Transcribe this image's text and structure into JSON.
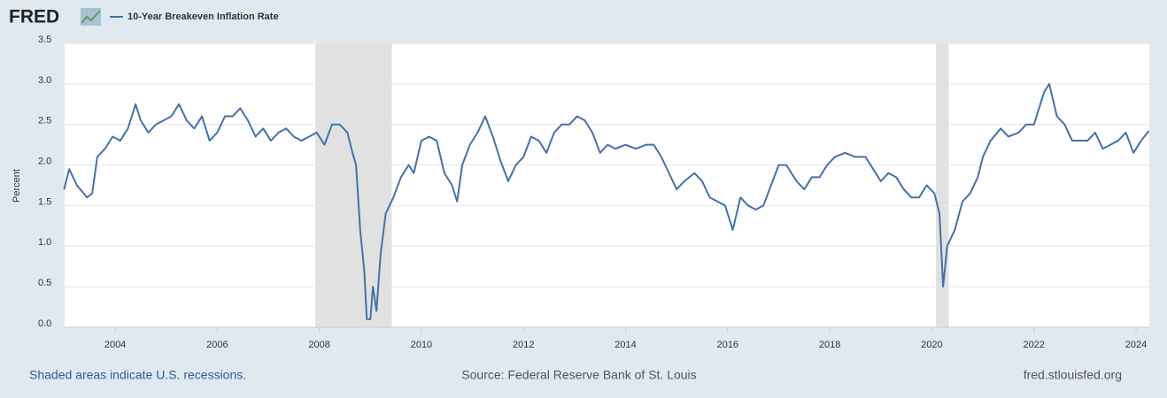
{
  "logo": "FRED",
  "chart_data": {
    "type": "line",
    "ylabel": "Percent",
    "series": [
      {
        "name": "10-Year Breakeven Inflation Rate",
        "color": "#4572a7",
        "values": [
          1.7,
          1.95,
          1.75,
          1.6,
          1.65,
          2.1,
          2.2,
          2.35,
          2.3,
          2.45,
          2.75,
          2.55,
          2.4,
          2.5,
          2.55,
          2.6,
          2.75,
          2.55,
          2.45,
          2.6,
          2.3,
          2.4,
          2.6,
          2.6,
          2.7,
          2.55,
          2.35,
          2.45,
          2.3,
          2.4,
          2.45,
          2.35,
          2.3,
          2.35,
          2.4,
          2.25,
          2.5,
          2.5,
          2.4,
          2.15,
          2.0,
          1.2,
          0.7,
          0.1,
          0.1,
          0.5,
          0.2,
          0.9,
          1.4,
          1.6,
          1.85,
          2.0,
          1.9,
          2.3,
          2.35,
          2.3,
          1.9,
          1.75,
          1.55,
          2.0,
          2.25,
          2.4,
          2.6,
          2.35,
          2.05,
          1.8,
          2.0,
          2.1,
          2.35,
          2.3,
          2.15,
          2.4,
          2.5,
          2.5,
          2.6,
          2.55,
          2.4,
          2.15,
          2.25,
          2.2,
          2.25,
          2.2,
          2.25,
          2.25,
          2.1,
          1.9,
          1.7,
          1.8,
          1.9,
          1.8,
          1.6,
          1.55,
          1.5,
          1.2,
          1.6,
          1.5,
          1.45,
          1.5,
          1.75,
          2.0,
          2.0,
          1.8,
          1.7,
          1.85,
          1.85,
          2.0,
          2.1,
          2.15,
          2.1,
          2.1,
          1.95,
          1.8,
          1.9,
          1.85,
          1.7,
          1.6,
          1.6,
          1.75,
          1.65,
          1.4,
          0.5,
          1.0,
          1.2,
          1.55,
          1.65,
          1.85,
          2.1,
          2.3,
          2.45,
          2.35,
          2.4,
          2.5,
          2.5,
          2.9,
          3.0,
          2.6,
          2.5,
          2.3,
          2.3,
          2.3,
          2.4,
          2.2,
          2.25,
          2.3,
          2.4,
          2.15,
          2.3,
          2.42
        ]
      }
    ],
    "x": [
      2003.0,
      2003.1,
      2003.25,
      2003.45,
      2003.55,
      2003.65,
      2003.8,
      2003.95,
      2004.1,
      2004.25,
      2004.4,
      2004.5,
      2004.65,
      2004.8,
      2004.95,
      2005.1,
      2005.25,
      2005.4,
      2005.55,
      2005.7,
      2005.85,
      2006.0,
      2006.15,
      2006.3,
      2006.45,
      2006.6,
      2006.75,
      2006.9,
      2007.05,
      2007.2,
      2007.35,
      2007.5,
      2007.65,
      2007.8,
      2007.95,
      2008.1,
      2008.25,
      2008.4,
      2008.55,
      2008.65,
      2008.72,
      2008.8,
      2008.88,
      2008.93,
      2009.0,
      2009.05,
      2009.12,
      2009.2,
      2009.3,
      2009.45,
      2009.6,
      2009.75,
      2009.85,
      2010.0,
      2010.15,
      2010.3,
      2010.45,
      2010.6,
      2010.7,
      2010.8,
      2010.95,
      2011.1,
      2011.25,
      2011.4,
      2011.55,
      2011.7,
      2011.85,
      2012.0,
      2012.15,
      2012.3,
      2012.45,
      2012.6,
      2012.75,
      2012.9,
      2013.05,
      2013.2,
      2013.35,
      2013.5,
      2013.65,
      2013.8,
      2014.0,
      2014.2,
      2014.4,
      2014.55,
      2014.7,
      2014.85,
      2015.0,
      2015.15,
      2015.35,
      2015.5,
      2015.65,
      2015.8,
      2015.95,
      2016.1,
      2016.25,
      2016.4,
      2016.55,
      2016.7,
      2016.85,
      2017.0,
      2017.15,
      2017.35,
      2017.5,
      2017.65,
      2017.8,
      2017.95,
      2018.1,
      2018.3,
      2018.5,
      2018.7,
      2018.85,
      2019.0,
      2019.15,
      2019.3,
      2019.45,
      2019.6,
      2019.75,
      2019.9,
      2020.05,
      2020.15,
      2020.22,
      2020.3,
      2020.45,
      2020.6,
      2020.75,
      2020.9,
      2021.0,
      2021.15,
      2021.35,
      2021.5,
      2021.7,
      2021.85,
      2022.0,
      2022.2,
      2022.3,
      2022.45,
      2022.6,
      2022.75,
      2022.9,
      2023.05,
      2023.2,
      2023.35,
      2023.5,
      2023.65,
      2023.8,
      2023.95,
      2024.1,
      2024.25
    ],
    "xlim": [
      2003.01,
      2024.26
    ],
    "xticks": [
      2004,
      2006,
      2008,
      2010,
      2012,
      2014,
      2016,
      2018,
      2020,
      2022,
      2024
    ],
    "ylim": [
      0,
      3.5
    ],
    "yticks": [
      {
        "value": 0,
        "label": "0.0"
      },
      0.5,
      {
        "value": 1,
        "label": "1.0"
      },
      1.5,
      {
        "value": 2,
        "label": "2.0"
      },
      2.5,
      {
        "value": 3,
        "label": "3.0"
      },
      3.5
    ],
    "grid": true,
    "recessions": [
      [
        2007.92,
        2009.42
      ],
      [
        2020.08,
        2020.33
      ]
    ],
    "notes": {
      "left": "Shaded areas indicate U.S. recessions.",
      "center": "Source: Federal Reserve Bank of St. Louis",
      "right": "fred.stlouisfed.org"
    }
  }
}
